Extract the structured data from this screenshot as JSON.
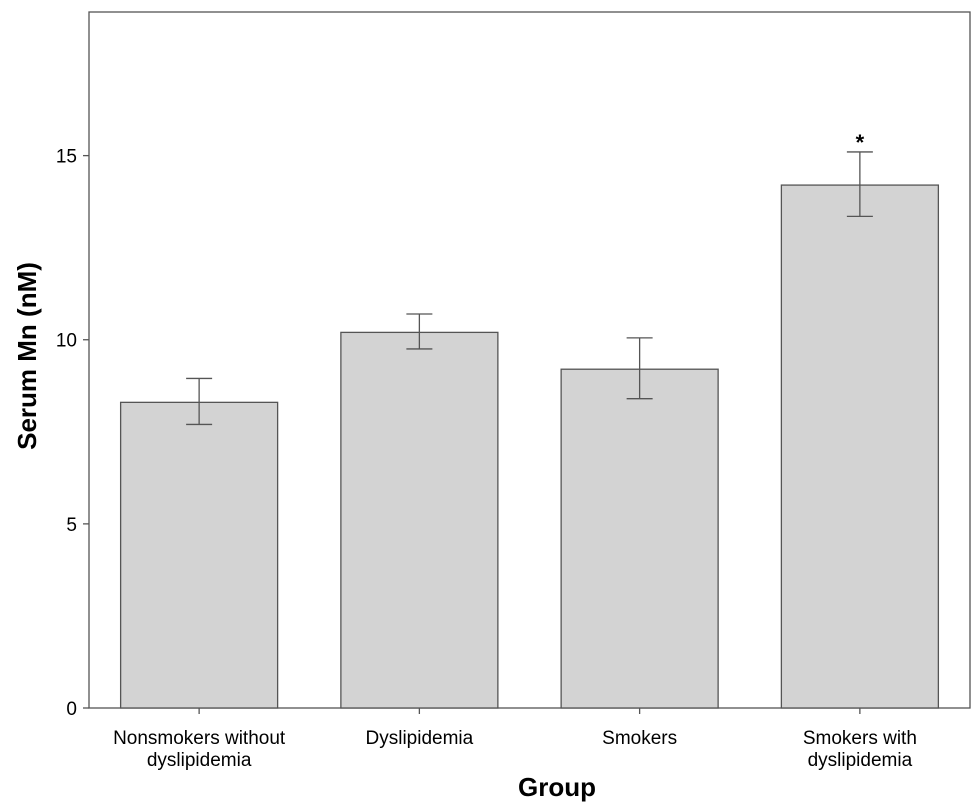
{
  "chart_data": {
    "type": "bar",
    "title": "",
    "xlabel": "Group",
    "ylabel": "Serum Mn (nM)",
    "categories": [
      [
        "Nonsmokers without",
        "dyslipidemia"
      ],
      [
        "Dyslipidemia"
      ],
      [
        "Smokers"
      ],
      [
        "Smokers with",
        "dyslipidemia"
      ]
    ],
    "values": [
      8.3,
      10.2,
      9.2,
      14.2
    ],
    "error_low": [
      7.7,
      9.75,
      8.4,
      13.35
    ],
    "error_high": [
      8.95,
      10.7,
      10.05,
      15.1
    ],
    "annotations": [
      "",
      "",
      "",
      "*"
    ],
    "ylim": [
      0,
      18.9
    ],
    "yticks": [
      0,
      5,
      10,
      15
    ],
    "grid": false,
    "colors": {
      "bar_fill": "#d3d3d3",
      "bar_stroke": "#555555",
      "error_bar": "#555555",
      "axis": "#555555"
    }
  }
}
